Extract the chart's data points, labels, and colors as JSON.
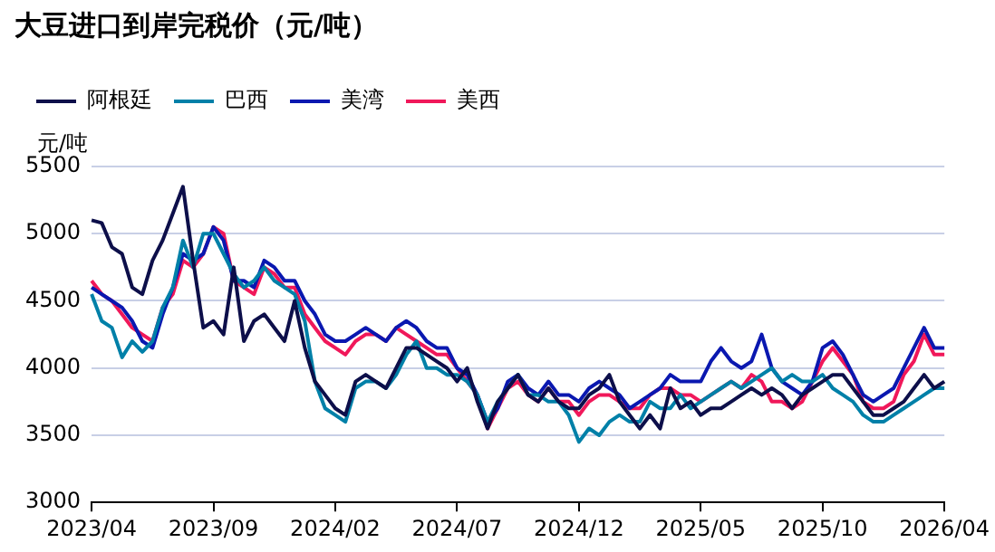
{
  "chart_data": {
    "type": "line",
    "title": "大豆进口到岸完税价（元/吨）",
    "ylabel": "元/吨",
    "categories": [
      "2023/04",
      null,
      null,
      null,
      null,
      null,
      null,
      null,
      null,
      null,
      null,
      null,
      "2023/09",
      null,
      null,
      null,
      null,
      null,
      null,
      null,
      null,
      null,
      null,
      null,
      "2024/02",
      null,
      null,
      null,
      null,
      null,
      null,
      null,
      null,
      null,
      null,
      null,
      "2024/07",
      null,
      null,
      null,
      null,
      null,
      null,
      null,
      null,
      null,
      null,
      null,
      "2024/12",
      null,
      null,
      null,
      null,
      null,
      null,
      null,
      null,
      null,
      null,
      null,
      "2025/05",
      null,
      null,
      null,
      null,
      null,
      null,
      null,
      null,
      null,
      null,
      null,
      "2025/10",
      null,
      null,
      null,
      null,
      null,
      null,
      null,
      null,
      null,
      null,
      null,
      "2026/04"
    ],
    "series": [
      {
        "name": "阿根廷",
        "color": "#0d0f4a",
        "values": [
          5100,
          5080,
          4900,
          4850,
          4600,
          4550,
          4800,
          4950,
          5150,
          5350,
          4800,
          4300,
          4350,
          4250,
          4750,
          4200,
          4350,
          4400,
          4300,
          4200,
          4500,
          4150,
          3900,
          3800,
          3700,
          3650,
          3900,
          3950,
          3900,
          3850,
          4000,
          4150,
          4150,
          4100,
          4050,
          4000,
          3900,
          4000,
          3750,
          3550,
          3750,
          3850,
          3950,
          3800,
          3750,
          3850,
          3750,
          3700,
          3700,
          3800,
          3850,
          3950,
          3750,
          3650,
          3550,
          3650,
          3550,
          3850,
          3700,
          3750,
          3650,
          3700,
          3700,
          3750,
          3800,
          3850,
          3800,
          3850,
          3800,
          3700,
          3800,
          3850,
          3900,
          3950,
          3950,
          3850,
          3750,
          3650,
          3650,
          3700,
          3750,
          3850,
          3950,
          3850,
          3900
        ]
      },
      {
        "name": "巴西",
        "color": "#0080a8",
        "values": [
          4550,
          4350,
          4300,
          4080,
          4200,
          4120,
          4200,
          4450,
          4600,
          4950,
          4750,
          5000,
          5000,
          4850,
          4700,
          4600,
          4650,
          4750,
          4650,
          4600,
          4550,
          4350,
          3900,
          3700,
          3650,
          3600,
          3850,
          3900,
          3900,
          3850,
          3950,
          4100,
          4200,
          4000,
          4000,
          3950,
          3950,
          3900,
          3800,
          3600,
          3750,
          3850,
          3950,
          3800,
          3800,
          3750,
          3750,
          3650,
          3450,
          3550,
          3500,
          3600,
          3650,
          3600,
          3600,
          3750,
          3700,
          3700,
          3800,
          3700,
          3750,
          3800,
          3850,
          3900,
          3850,
          3900,
          3950,
          4000,
          3900,
          3950,
          3900,
          3900,
          3950,
          3850,
          3800,
          3750,
          3650,
          3600,
          3600,
          3650,
          3700,
          3750,
          3800,
          3850,
          3850
        ]
      },
      {
        "name": "美湾",
        "color": "#0a18b0",
        "values": [
          4600,
          4550,
          4500,
          4450,
          4350,
          4200,
          4150,
          4400,
          4600,
          4850,
          4800,
          4850,
          5050,
          4950,
          4650,
          4650,
          4600,
          4800,
          4750,
          4650,
          4650,
          4500,
          4400,
          4250,
          4200,
          4200,
          4250,
          4300,
          4250,
          4200,
          4300,
          4350,
          4300,
          4200,
          4150,
          4150,
          4000,
          3950,
          3800,
          3600,
          3700,
          3900,
          3950,
          3850,
          3800,
          3900,
          3800,
          3800,
          3750,
          3850,
          3900,
          3850,
          3800,
          3700,
          3750,
          3800,
          3850,
          3950,
          3900,
          3900,
          3900,
          4050,
          4150,
          4050,
          4000,
          4050,
          4250,
          4000,
          3900,
          3850,
          3800,
          3900,
          4150,
          4200,
          4100,
          3950,
          3800,
          3750,
          3800,
          3850,
          4000,
          4150,
          4300,
          4150,
          4150
        ]
      },
      {
        "name": "美西",
        "color": "#f0185a",
        "values": [
          4650,
          4550,
          4500,
          4400,
          4300,
          4250,
          4200,
          4450,
          4550,
          4800,
          4750,
          4850,
          5050,
          5000,
          4650,
          4600,
          4550,
          4750,
          4700,
          4600,
          4600,
          4400,
          4300,
          4200,
          4150,
          4100,
          4200,
          4250,
          4250,
          4200,
          4300,
          4250,
          4200,
          4150,
          4100,
          4100,
          4000,
          3900,
          3800,
          3550,
          3700,
          3850,
          3900,
          3800,
          3750,
          3850,
          3750,
          3750,
          3650,
          3750,
          3800,
          3800,
          3750,
          3700,
          3700,
          3800,
          3850,
          3850,
          3800,
          3800,
          3750,
          3800,
          3850,
          3900,
          3850,
          3950,
          3900,
          3750,
          3750,
          3700,
          3750,
          3900,
          4050,
          4150,
          4050,
          3950,
          3750,
          3700,
          3700,
          3750,
          3950,
          4050,
          4250,
          4100,
          4100
        ]
      }
    ],
    "ylim": [
      3000,
      5500
    ],
    "yticks": [
      3000,
      3500,
      4000,
      4500,
      5000,
      5500
    ],
    "grid": "y",
    "legend": "top left",
    "marker": "none",
    "line_style": "solid"
  }
}
